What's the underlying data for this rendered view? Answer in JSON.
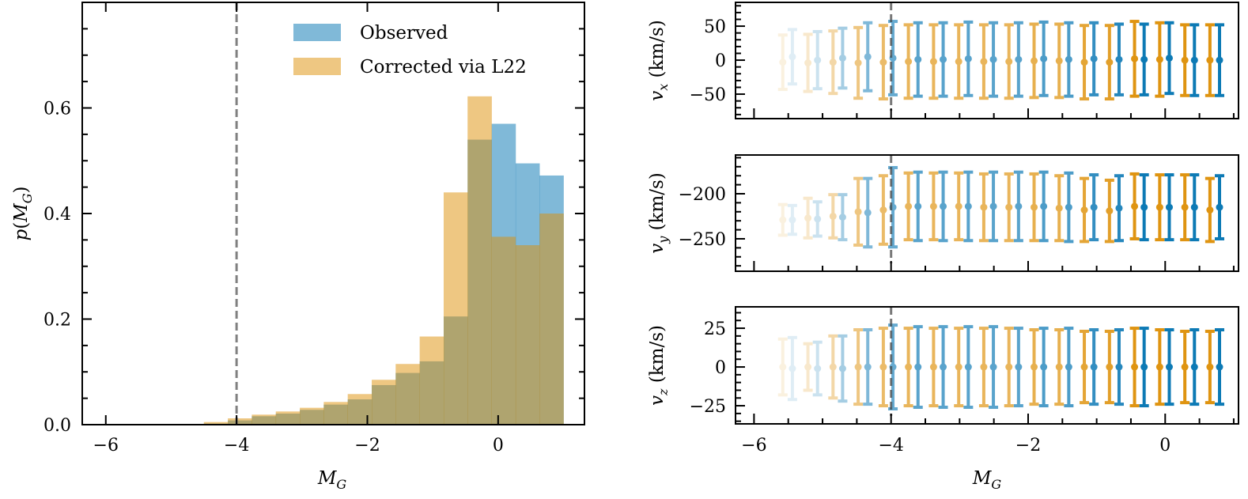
{
  "chart_data": [
    {
      "type": "bar",
      "subtype": "histogram-overlay",
      "title": "",
      "xlabel": "M_G",
      "ylabel": "p(M_G)",
      "xlim": [
        -6.36,
        1.32
      ],
      "ylim": [
        0.0,
        0.8
      ],
      "xticks": [
        -6,
        -4,
        -2,
        0
      ],
      "xtick_labels": [
        "−6",
        "−4",
        "−2",
        "0"
      ],
      "yticks": [
        0.0,
        0.2,
        0.4,
        0.6
      ],
      "ytick_labels": [
        "0.0",
        "0.2",
        "0.4",
        "0.6"
      ],
      "grid": false,
      "legend_placement": "top-right",
      "vline": {
        "x": -4,
        "style": "dashed",
        "color": "#808080"
      },
      "bin_edges": [
        -4.867,
        -4.5,
        -4.133,
        -3.767,
        -3.4,
        -3.033,
        -2.667,
        -2.3,
        -1.933,
        -1.567,
        -1.2,
        -0.833,
        -0.467,
        -0.1,
        0.267,
        0.633,
        1.0
      ],
      "series": [
        {
          "name": "Observed",
          "color": "#0173b2",
          "alpha": 0.5,
          "values": [
            0.0,
            0.002,
            0.008,
            0.016,
            0.021,
            0.028,
            0.038,
            0.048,
            0.075,
            0.098,
            0.12,
            0.205,
            0.54,
            0.57,
            0.495,
            0.472
          ]
        },
        {
          "name": "Corrected via L22",
          "color": "#de8f05",
          "alpha": 0.5,
          "values": [
            0.001,
            0.005,
            0.012,
            0.019,
            0.025,
            0.032,
            0.043,
            0.058,
            0.085,
            0.115,
            0.167,
            0.44,
            0.622,
            0.356,
            0.34,
            0.4
          ]
        }
      ]
    },
    {
      "type": "scatter",
      "subtype": "errorbar-panels",
      "xlabel": "M_G",
      "xlim": [
        -6.27,
        1.07
      ],
      "xticks": [
        -6,
        -4,
        -2,
        0
      ],
      "xtick_labels": [
        "−6",
        "−4",
        "−2",
        "0"
      ],
      "vline": {
        "x": -4,
        "style": "dashed",
        "color": "#404040"
      },
      "x_centers": [
        -5.5,
        -5.133,
        -4.767,
        -4.4,
        -4.033,
        -3.667,
        -3.3,
        -2.933,
        -2.567,
        -2.2,
        -1.833,
        -1.467,
        -1.1,
        -0.733,
        -0.367,
        0.0,
        0.367,
        0.733
      ],
      "alphas": [
        0.12,
        0.2,
        0.35,
        0.5,
        0.6,
        0.65,
        0.65,
        0.65,
        0.65,
        0.65,
        0.7,
        0.7,
        0.8,
        0.85,
        0.95,
        0.95,
        0.95,
        0.95
      ],
      "series_names": [
        "Observed",
        "Corrected via L22"
      ],
      "series_colors": {
        "observed": "#0173b2",
        "corrected": "#de8f05"
      },
      "panels": [
        {
          "ylabel": "v_x (km/s)",
          "ylabel_sub": "x",
          "ylim": [
            -86,
            85
          ],
          "yticks": [
            -50,
            0,
            50
          ],
          "ytick_labels": [
            "−50",
            "0",
            "50"
          ],
          "observed": {
            "mean": [
              5,
              0,
              3,
              5,
              3,
              1,
              1,
              2,
              1,
              1,
              2,
              1,
              2,
              1,
              1,
              3,
              0,
              0
            ],
            "err": [
              40,
              42,
              44,
              50,
              54,
              54,
              54,
              54,
              54,
              54,
              54,
              54,
              53,
              52,
              52,
              52,
              52,
              52
            ]
          },
          "corrected": {
            "mean": [
              -3,
              -4,
              -3,
              -4,
              -3,
              -2,
              -2,
              -2,
              -2,
              -2,
              -1,
              -1,
              -3,
              -3,
              2,
              1,
              0,
              0
            ],
            "err": [
              40,
              42,
              46,
              52,
              54,
              54,
              54,
              54,
              54,
              54,
              54,
              54,
              54,
              54,
              55,
              54,
              52,
              52
            ]
          }
        },
        {
          "ylabel": "v_y (km/s)",
          "ylabel_sub": "y",
          "ylim": [
            -286,
            -157
          ],
          "yticks": [
            -200,
            -250
          ],
          "ytick_labels": [
            "−200",
            "−250"
          ],
          "observed": {
            "mean": [
              -229,
              -228,
              -226,
              -221,
              -215,
              -214,
              -214,
              -214,
              -214,
              -214,
              -214,
              -215,
              -215,
              -216,
              -215,
              -215,
              -215,
              -215
            ],
            "err": [
              16,
              19,
              25,
              38,
              44,
              38,
              38,
              38,
              38,
              38,
              38,
              38,
              36,
              36,
              36,
              36,
              36,
              35
            ]
          },
          "corrected": {
            "mean": [
              -229,
              -227,
              -225,
              -220,
              -218,
              -214,
              -214,
              -214,
              -215,
              -215,
              -215,
              -216,
              -218,
              -219,
              -214,
              -215,
              -215,
              -218
            ],
            "err": [
              17,
              22,
              24,
              37,
              38,
              37,
              37,
              37,
              37,
              37,
              37,
              36,
              35,
              34,
              36,
              36,
              36,
              35
            ]
          }
        },
        {
          "ylabel": "v_z (km/s)",
          "ylabel_sub": "z",
          "ylim": [
            -36.7,
            38.8
          ],
          "yticks": [
            25,
            0,
            -25
          ],
          "ytick_labels": [
            "25",
            "0",
            "−25"
          ],
          "observed": {
            "mean": [
              -1,
              -1,
              -1,
              0,
              0,
              0,
              0,
              0,
              0,
              0,
              0,
              0,
              0,
              0,
              0,
              0,
              0,
              0
            ],
            "err": [
              20,
              17,
              21,
              24,
              27,
              26,
              26,
              26,
              26,
              25,
              25,
              25,
              24,
              24,
              25,
              24,
              24,
              24
            ]
          },
          "corrected": {
            "mean": [
              0,
              0,
              0,
              0,
              0,
              0,
              0,
              0,
              0,
              0,
              0,
              0,
              0,
              0,
              0,
              0,
              0,
              0
            ],
            "err": [
              18,
              15,
              20,
              24,
              25,
              25,
              25,
              25,
              25,
              25,
              24,
              24,
              23,
              23,
              25,
              24,
              23,
              23
            ]
          }
        }
      ]
    }
  ]
}
